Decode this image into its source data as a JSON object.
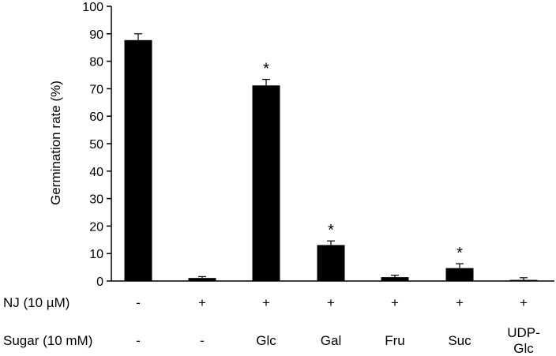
{
  "chart_data": {
    "type": "bar",
    "title": "",
    "ylabel": "Germination rate (%)",
    "ylim": [
      0,
      100
    ],
    "yticks": [
      0,
      10,
      20,
      30,
      40,
      50,
      60,
      70,
      80,
      90,
      100
    ],
    "grid": false,
    "bar_color": "#000000",
    "rows": [
      {
        "label": "NJ (10 µM)",
        "values": [
          "-",
          "+",
          "+",
          "+",
          "+",
          "+",
          "+"
        ]
      },
      {
        "label": "Sugar (10 mM)",
        "values": [
          "-",
          "-",
          "Glc",
          "Gal",
          "Fru",
          "Suc",
          "UDP-\nGlc"
        ]
      }
    ],
    "values": [
      87.7,
      1.1,
      71.2,
      13.1,
      1.4,
      4.7,
      0.4
    ],
    "errors": [
      2.3,
      0.5,
      2.2,
      1.5,
      0.7,
      1.6,
      0.8
    ],
    "significance": [
      "",
      "",
      "*",
      "*",
      "",
      "*",
      ""
    ]
  }
}
